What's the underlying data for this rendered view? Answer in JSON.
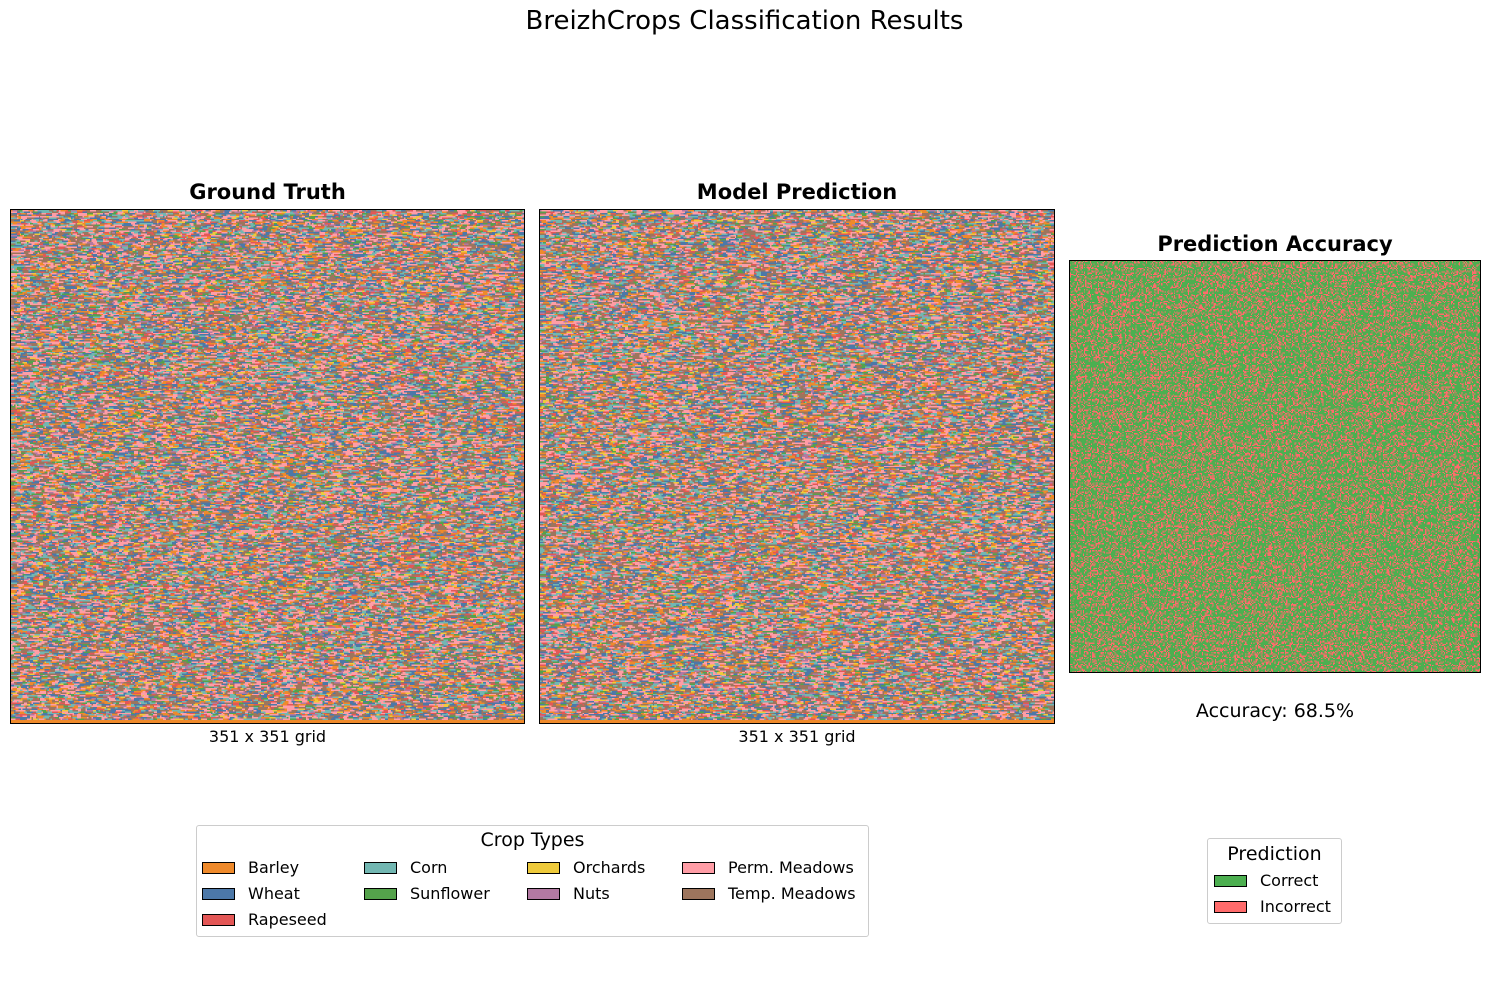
{
  "figure": {
    "title": "BreizhCrops Classification Results"
  },
  "chart_data": [
    {
      "type": "heatmap",
      "title": "Ground Truth",
      "xlabel": "351 x 351 grid",
      "grid_size": [
        351,
        351
      ],
      "classes": [
        "Barley",
        "Wheat",
        "Rapeseed",
        "Corn",
        "Sunflower",
        "Orchards",
        "Nuts",
        "Perm. Meadows",
        "Temp. Meadows"
      ]
    },
    {
      "type": "heatmap",
      "title": "Model Prediction",
      "xlabel": "351 x 351 grid",
      "grid_size": [
        351,
        351
      ],
      "classes": [
        "Barley",
        "Wheat",
        "Rapeseed",
        "Corn",
        "Sunflower",
        "Orchards",
        "Nuts",
        "Perm. Meadows",
        "Temp. Meadows"
      ]
    },
    {
      "type": "heatmap",
      "title": "Prediction Accuracy",
      "annotation": "Accuracy: 68.5%",
      "accuracy": 0.685,
      "classes": [
        "Correct",
        "Incorrect"
      ]
    }
  ],
  "crop_legend": {
    "title": "Crop Types",
    "items": [
      {
        "label": "Barley",
        "color": "#ef8a2b"
      },
      {
        "label": "Wheat",
        "color": "#4c78a8"
      },
      {
        "label": "Rapeseed",
        "color": "#e45756"
      },
      {
        "label": "Corn",
        "color": "#72b7b2"
      },
      {
        "label": "Sunflower",
        "color": "#54a24b"
      },
      {
        "label": "Orchards",
        "color": "#eeca3b"
      },
      {
        "label": "Nuts",
        "color": "#b279a2"
      },
      {
        "label": "Perm. Meadows",
        "color": "#ff9da6"
      },
      {
        "label": "Temp. Meadows",
        "color": "#9d755d"
      }
    ]
  },
  "accuracy_legend": {
    "title": "Prediction",
    "items": [
      {
        "label": "Correct",
        "color": "#4caf50"
      },
      {
        "label": "Incorrect",
        "color": "#ff6b6b"
      }
    ]
  }
}
